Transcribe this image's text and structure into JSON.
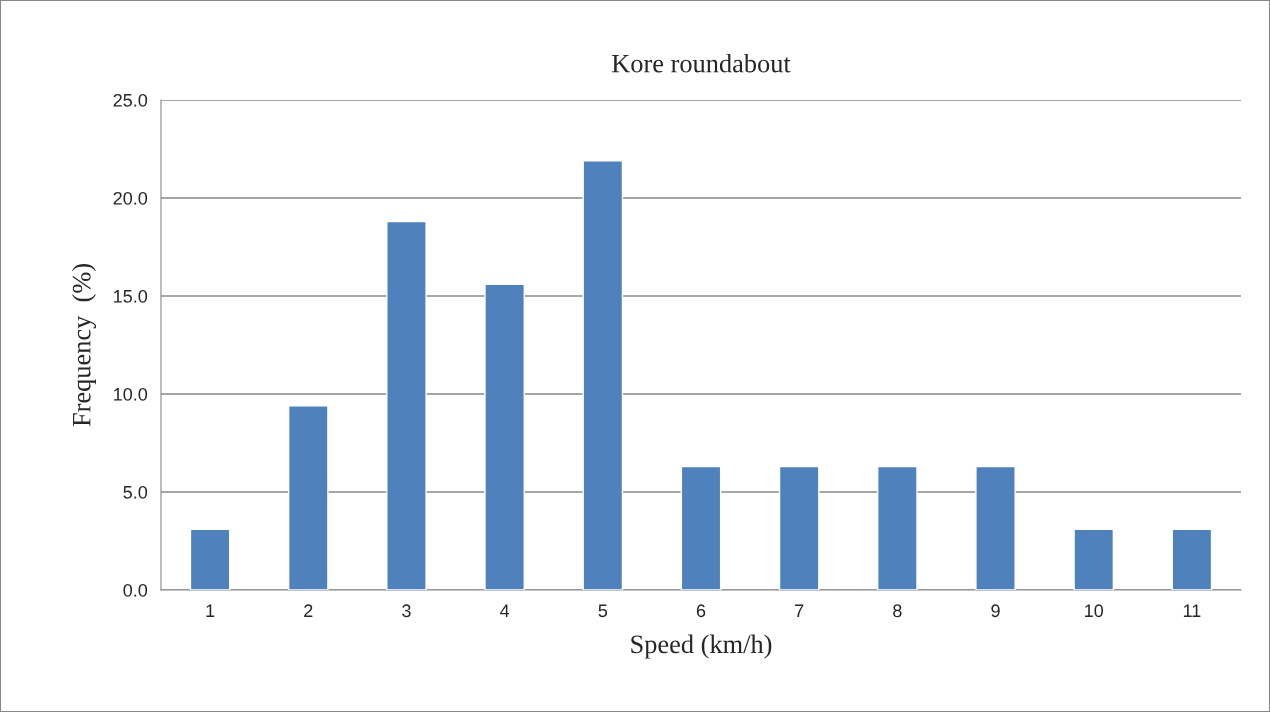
{
  "chart_data": {
    "type": "bar",
    "title": "Kore roundabout",
    "xlabel": "Speed (km/h)",
    "ylabel": "Frequency  (%)",
    "categories": [
      "1",
      "2",
      "3",
      "4",
      "5",
      "6",
      "7",
      "8",
      "9",
      "10",
      "11"
    ],
    "values": [
      3.1,
      9.4,
      18.8,
      15.6,
      21.9,
      6.3,
      6.3,
      6.3,
      6.3,
      3.1,
      3.1
    ],
    "color": "#4f81bd",
    "ylim": [
      0,
      25
    ],
    "yticks": [
      {
        "value": 0,
        "label": "0.0"
      },
      {
        "value": 5,
        "label": "5.0"
      },
      {
        "value": 10,
        "label": "10.0"
      },
      {
        "value": 15,
        "label": "15.0"
      },
      {
        "value": 20,
        "label": "20.0"
      },
      {
        "value": 25,
        "label": "25.0"
      }
    ],
    "grid": "y"
  }
}
